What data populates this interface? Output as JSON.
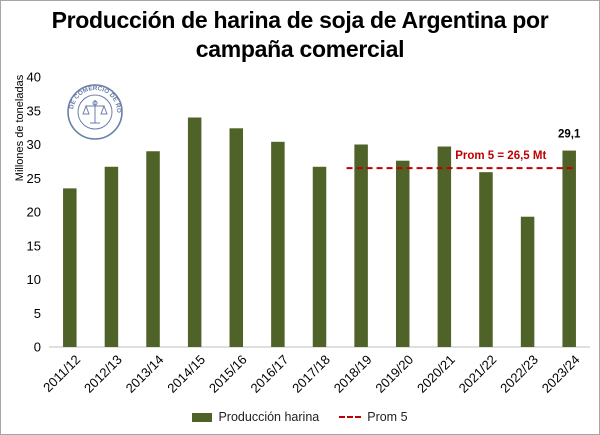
{
  "chart_data": {
    "type": "bar",
    "title": "Producción de harina de soja de Argentina por campaña comercial",
    "title_lines": [
      "Producción de harina de soja de Argentina por",
      "campaña comercial"
    ],
    "ylabel": "Millones de toneladas",
    "xlabel": "",
    "ylim": [
      0,
      40
    ],
    "yticks": [
      0,
      5,
      10,
      15,
      20,
      25,
      30,
      35,
      40
    ],
    "grid": false,
    "legend_position": "bottom",
    "categories": [
      "2011/12",
      "2012/13",
      "2013/14",
      "2014/15",
      "2015/16",
      "2016/17",
      "2017/18",
      "2018/19",
      "2019/20",
      "2020/21",
      "2021/22",
      "2022/23",
      "2023/24"
    ],
    "series": [
      {
        "name": "Producción harina",
        "type": "bar",
        "color": "#4f6228",
        "values": [
          23.5,
          26.7,
          29.0,
          34.0,
          32.4,
          30.4,
          26.7,
          30.0,
          27.6,
          29.7,
          25.9,
          19.3,
          29.1
        ]
      },
      {
        "name": "Prom 5",
        "type": "line",
        "style": "dashed",
        "color": "#c00000",
        "value": 26.5,
        "x_range": [
          "2018/19",
          "2023/24"
        ]
      }
    ],
    "annotations": [
      {
        "text": "Prom 5 = 26,5 Mt",
        "color": "#c00000"
      },
      {
        "text": "29,1",
        "category": "2023/24"
      }
    ]
  },
  "logo": {
    "text": "BOLSA DE COMERCIO DE ROSARIO",
    "color": "#6b7fa8"
  }
}
